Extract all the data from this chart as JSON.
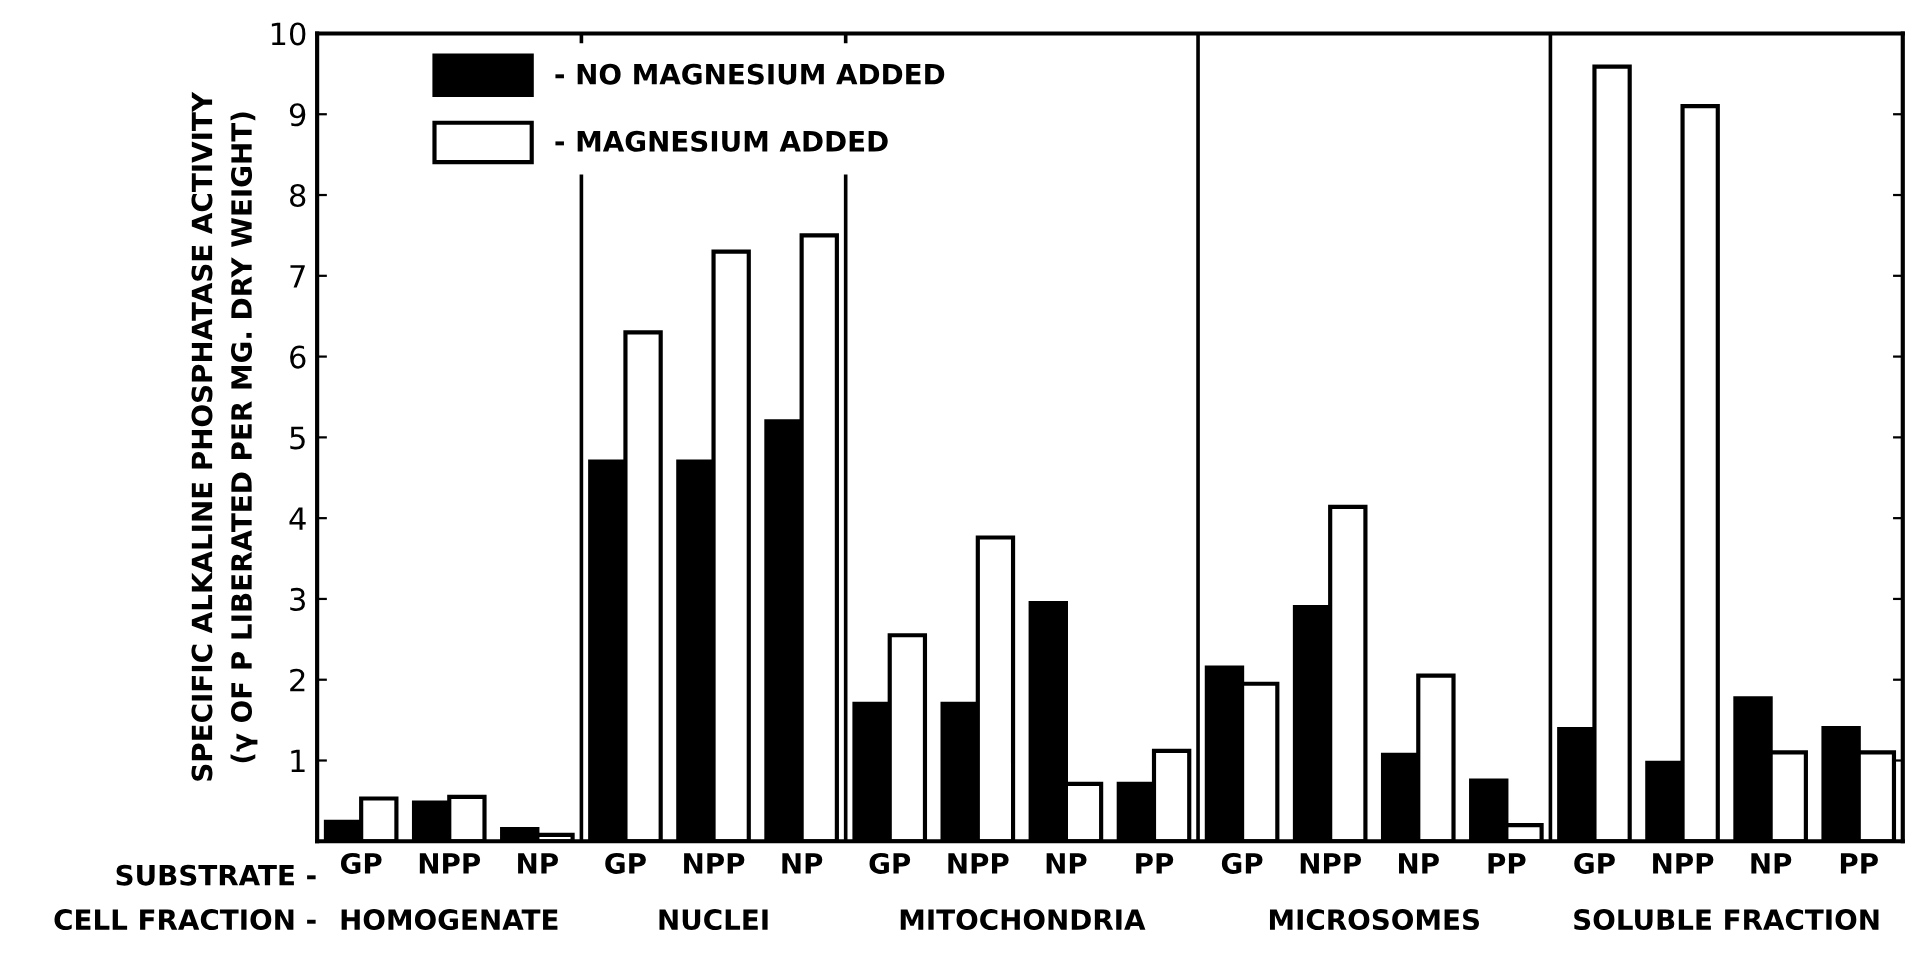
{
  "chart_data": {
    "type": "bar",
    "ylabel": "SPECIFIC ALKALINE PHOSPHATASE ACTIVITY\n(γ OF P LIBERATED PER MG. DRY WEIGHT)",
    "categories": [
      "GP",
      "NPP",
      "NP",
      "GP",
      "NPP",
      "NP",
      "GP",
      "NPP",
      "NP",
      "PP",
      "GP",
      "NPP",
      "NP",
      "PP",
      "GP",
      "NPP",
      "NP",
      "PP"
    ],
    "series": [
      {
        "name": "- NO MAGNESIUM ADDED",
        "color": "#000000",
        "values": [
          0.24,
          0.48,
          0.15,
          4.7,
          4.7,
          5.2,
          1.7,
          1.7,
          2.95,
          0.71,
          2.15,
          2.9,
          1.07,
          0.75,
          1.39,
          0.97,
          1.77,
          1.4
        ]
      },
      {
        "name": "- MAGNESIUM ADDED",
        "color": "#ffffff",
        "values": [
          0.53,
          0.55,
          0.08,
          6.3,
          7.3,
          7.5,
          2.55,
          3.76,
          0.71,
          1.12,
          1.95,
          4.14,
          2.05,
          0.2,
          9.59,
          9.1,
          1.1,
          1.1
        ]
      }
    ],
    "annotations": [
      "SUBSTRATE -",
      "CELL FRACTION -",
      "HOMOGENATE",
      "NUCLEI",
      "MITOCHONDRIA",
      "MICROSOMES",
      "SOLUBLE FRACTION"
    ],
    "ylim": [
      0,
      10
    ],
    "yticks": [
      1,
      2,
      3,
      4,
      5,
      6,
      7,
      8,
      9,
      10
    ],
    "grid": false,
    "legend": "top left"
  }
}
